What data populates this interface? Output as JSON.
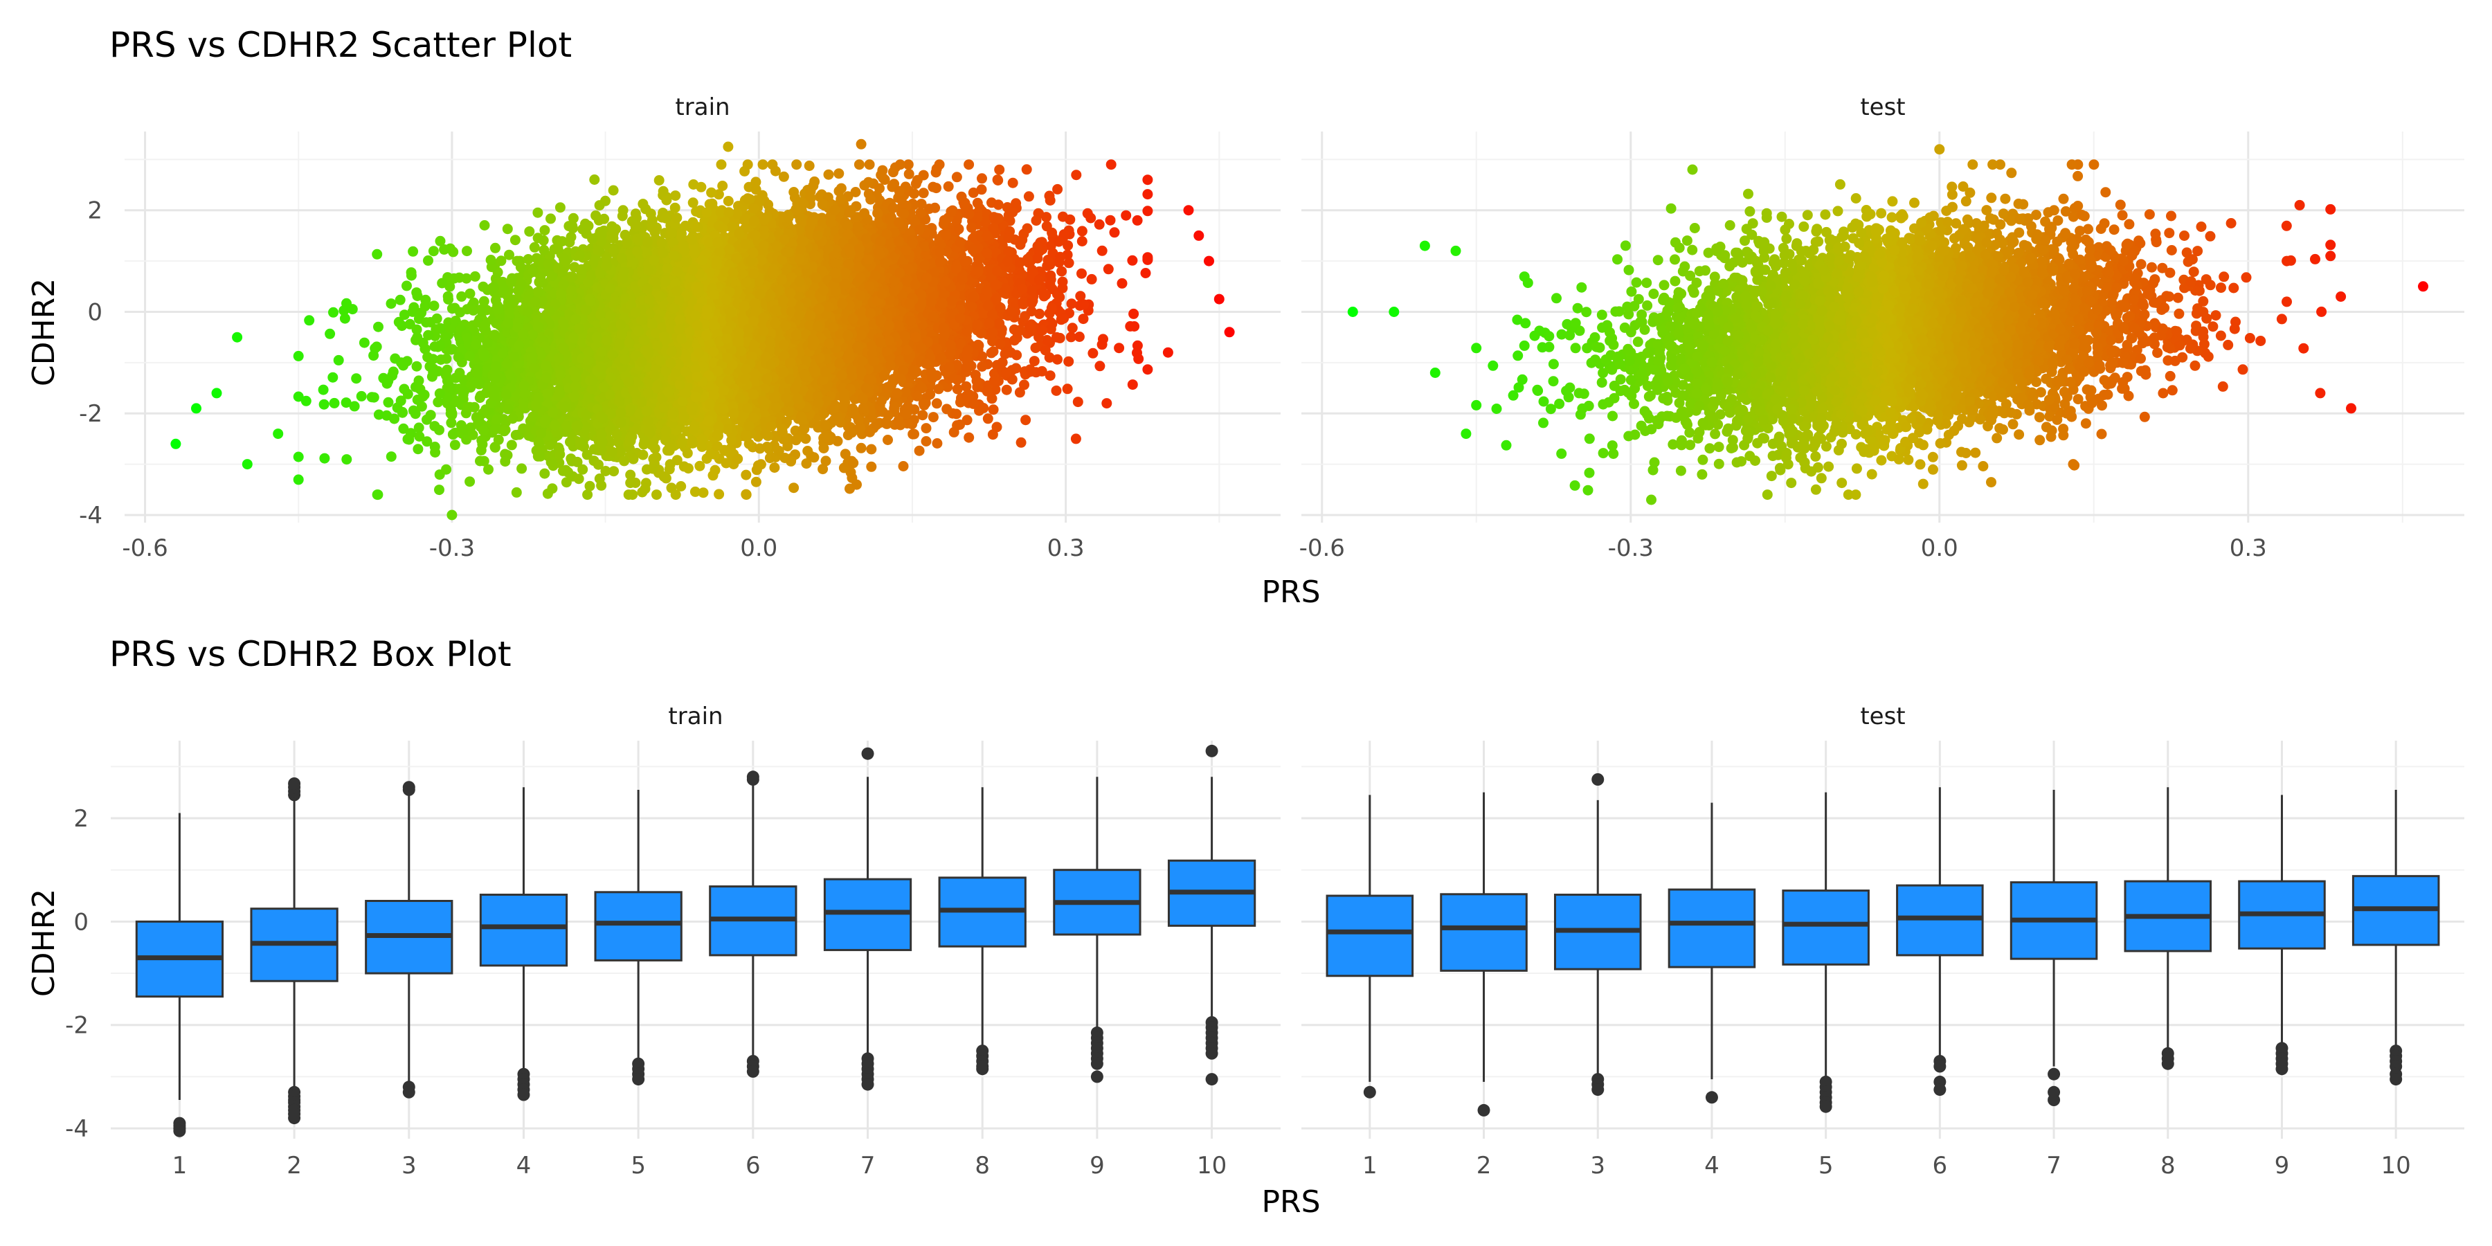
{
  "colors": {
    "low": "#00ff00",
    "mid": "#c8b400",
    "high": "#ff0000",
    "box_fill": "#1e90ff",
    "box_line": "#333333"
  },
  "chart_data": [
    {
      "type": "scatter",
      "title": "PRS vs CDHR2 Scatter Plot",
      "xlabel": "PRS",
      "ylabel": "CDHR2",
      "xlim": [
        -0.62,
        0.51
      ],
      "ylim": [
        -4.15,
        3.55
      ],
      "xticks": [
        -0.6,
        -0.3,
        0.0,
        0.3
      ],
      "xtick_labels": [
        "-0.6",
        "-0.3",
        "0.0",
        "0.3"
      ],
      "yticks": [
        -4,
        -2,
        0,
        2
      ],
      "ytick_labels": [
        "-4",
        "-2",
        "0",
        "2"
      ],
      "color_by": "x",
      "grid": true,
      "panels": [
        {
          "name": "train",
          "n_points": 14000,
          "cloud": {
            "x_mean": -0.02,
            "x_sd": 0.125,
            "y_mean": -0.3,
            "y_sd": 1.0,
            "slope": 2.6
          },
          "extreme_points": [
            [
              -0.57,
              -2.6
            ],
            [
              -0.55,
              -1.9
            ],
            [
              -0.53,
              -1.6
            ],
            [
              -0.5,
              -3.0
            ],
            [
              -0.51,
              -0.5
            ],
            [
              -0.47,
              -2.4
            ],
            [
              0.42,
              2.0
            ],
            [
              0.43,
              1.5
            ],
            [
              0.44,
              1.0
            ],
            [
              0.46,
              -0.4
            ],
            [
              0.45,
              0.25
            ],
            [
              0.4,
              -0.8
            ],
            [
              0.31,
              -2.5
            ],
            [
              0.37,
              1.8
            ],
            [
              -0.3,
              -4.0
            ],
            [
              -0.03,
              3.25
            ],
            [
              0.1,
              3.3
            ],
            [
              0.11,
              -3.05
            ],
            [
              0.34,
              -1.8
            ]
          ]
        },
        {
          "name": "test",
          "n_points": 6000,
          "cloud": {
            "x_mean": -0.04,
            "x_sd": 0.12,
            "y_mean": -0.4,
            "y_sd": 0.95,
            "slope": 2.1
          },
          "extreme_points": [
            [
              -0.57,
              0.0
            ],
            [
              -0.53,
              0.0
            ],
            [
              -0.5,
              1.3
            ],
            [
              -0.47,
              1.2
            ],
            [
              -0.49,
              -1.2
            ],
            [
              -0.46,
              -2.4
            ],
            [
              0.47,
              0.5
            ],
            [
              0.4,
              -1.9
            ],
            [
              0.38,
              1.1
            ],
            [
              0.37,
              -1.6
            ],
            [
              0.39,
              0.3
            ],
            [
              0.35,
              2.1
            ],
            [
              -0.24,
              2.8
            ],
            [
              0.0,
              3.2
            ],
            [
              -0.28,
              -3.7
            ],
            [
              -0.12,
              -3.5
            ],
            [
              0.13,
              -3.0
            ]
          ]
        }
      ]
    },
    {
      "type": "box",
      "title": "PRS vs CDHR2 Box Plot",
      "xlabel": "PRS",
      "ylabel": "CDHR2",
      "categories": [
        "1",
        "2",
        "3",
        "4",
        "5",
        "6",
        "7",
        "8",
        "9",
        "10"
      ],
      "ylim": [
        -4.2,
        3.5
      ],
      "yticks": [
        -4,
        -2,
        0,
        2
      ],
      "ytick_labels": [
        "-4",
        "-2",
        "0",
        "2"
      ],
      "panels": [
        {
          "name": "train",
          "boxes": [
            {
              "q1": -1.45,
              "median": -0.7,
              "q3": 0.0,
              "lo": -3.45,
              "hi": 2.1,
              "outliers": [
                -3.9,
                -3.95,
                -4.0,
                -4.05
              ]
            },
            {
              "q1": -1.15,
              "median": -0.42,
              "q3": 0.25,
              "lo": -3.2,
              "hi": 2.35,
              "outliers": [
                2.45,
                2.52,
                2.6,
                2.67,
                -3.3,
                -3.38,
                -3.45,
                -3.5,
                -3.58,
                -3.65,
                -3.72,
                -3.8
              ]
            },
            {
              "q1": -1.0,
              "median": -0.27,
              "q3": 0.4,
              "lo": -3.1,
              "hi": 2.5,
              "outliers": [
                2.55,
                2.6,
                -3.2,
                -3.3
              ]
            },
            {
              "q1": -0.85,
              "median": -0.1,
              "q3": 0.52,
              "lo": -2.9,
              "hi": 2.6,
              "outliers": [
                -2.95,
                -3.05,
                -3.15,
                -3.25,
                -3.35
              ]
            },
            {
              "q1": -0.75,
              "median": -0.03,
              "q3": 0.57,
              "lo": -2.7,
              "hi": 2.55,
              "outliers": [
                -2.75,
                -2.85,
                -2.95,
                -3.05
              ]
            },
            {
              "q1": -0.65,
              "median": 0.05,
              "q3": 0.68,
              "lo": -2.65,
              "hi": 2.7,
              "outliers": [
                2.75,
                2.8,
                -2.7,
                -2.8,
                -2.9
              ]
            },
            {
              "q1": -0.55,
              "median": 0.18,
              "q3": 0.82,
              "lo": -2.6,
              "hi": 2.8,
              "outliers": [
                3.25,
                -2.65,
                -2.75,
                -2.85,
                -2.95,
                -3.05,
                -3.15
              ]
            },
            {
              "q1": -0.48,
              "median": 0.22,
              "q3": 0.85,
              "lo": -2.45,
              "hi": 2.6,
              "outliers": [
                -2.5,
                -2.6,
                -2.7,
                -2.8,
                -2.85
              ]
            },
            {
              "q1": -0.25,
              "median": 0.37,
              "q3": 1.0,
              "lo": -2.1,
              "hi": 2.8,
              "outliers": [
                -2.15,
                -2.25,
                -2.35,
                -2.45,
                -2.55,
                -2.65,
                -2.75,
                -3.0
              ]
            },
            {
              "q1": -0.08,
              "median": 0.57,
              "q3": 1.18,
              "lo": -1.9,
              "hi": 2.8,
              "outliers": [
                3.3,
                -1.95,
                -2.05,
                -2.15,
                -2.25,
                -2.35,
                -2.45,
                -2.55,
                -3.05
              ]
            }
          ]
        },
        {
          "name": "test",
          "boxes": [
            {
              "q1": -1.05,
              "median": -0.2,
              "q3": 0.5,
              "lo": -3.1,
              "hi": 2.45,
              "outliers": [
                -3.3
              ]
            },
            {
              "q1": -0.95,
              "median": -0.12,
              "q3": 0.53,
              "lo": -3.1,
              "hi": 2.5,
              "outliers": [
                -3.65
              ]
            },
            {
              "q1": -0.92,
              "median": -0.17,
              "q3": 0.52,
              "lo": -2.95,
              "hi": 2.35,
              "outliers": [
                2.75,
                -3.05,
                -3.15,
                -3.25
              ]
            },
            {
              "q1": -0.88,
              "median": -0.03,
              "q3": 0.62,
              "lo": -3.05,
              "hi": 2.3,
              "outliers": [
                -3.4
              ]
            },
            {
              "q1": -0.83,
              "median": -0.05,
              "q3": 0.6,
              "lo": -3.0,
              "hi": 2.5,
              "outliers": [
                -3.1,
                -3.2,
                -3.3,
                -3.4,
                -3.5,
                -3.58
              ]
            },
            {
              "q1": -0.65,
              "median": 0.07,
              "q3": 0.7,
              "lo": -2.6,
              "hi": 2.6,
              "outliers": [
                -2.7,
                -2.8,
                -3.1,
                -3.25
              ]
            },
            {
              "q1": -0.72,
              "median": 0.03,
              "q3": 0.76,
              "lo": -2.8,
              "hi": 2.55,
              "outliers": [
                -2.95,
                -3.3,
                -3.45
              ]
            },
            {
              "q1": -0.57,
              "median": 0.1,
              "q3": 0.78,
              "lo": -2.45,
              "hi": 2.6,
              "outliers": [
                -2.55,
                -2.65,
                -2.75
              ]
            },
            {
              "q1": -0.52,
              "median": 0.15,
              "q3": 0.78,
              "lo": -2.35,
              "hi": 2.45,
              "outliers": [
                -2.45,
                -2.55,
                -2.65,
                -2.75,
                -2.85
              ]
            },
            {
              "q1": -0.45,
              "median": 0.25,
              "q3": 0.88,
              "lo": -2.4,
              "hi": 2.55,
              "outliers": [
                -2.5,
                -2.6,
                -2.7,
                -2.8,
                -2.95,
                -3.05
              ]
            }
          ]
        }
      ]
    }
  ]
}
